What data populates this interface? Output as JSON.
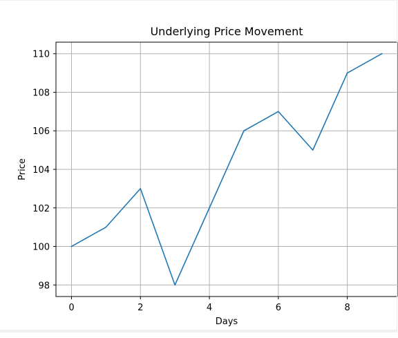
{
  "chart_data": {
    "type": "line",
    "title": "Underlying Price Movement",
    "xlabel": "Days",
    "ylabel": "Price",
    "x": [
      0,
      1,
      2,
      3,
      4,
      5,
      6,
      7,
      8,
      9
    ],
    "series": [
      {
        "values": [
          100,
          101,
          103,
          98,
          102,
          106,
          107,
          105,
          109,
          110
        ],
        "color": "#1f77b4"
      }
    ],
    "xlim": [
      -0.45,
      9.45
    ],
    "ylim": [
      97.4,
      110.6
    ],
    "xticks": [
      0,
      2,
      4,
      6,
      8
    ],
    "yticks": [
      98,
      100,
      102,
      104,
      106,
      108,
      110
    ],
    "grid": true,
    "grid_color": "#b0b0b0",
    "legend": "none"
  }
}
